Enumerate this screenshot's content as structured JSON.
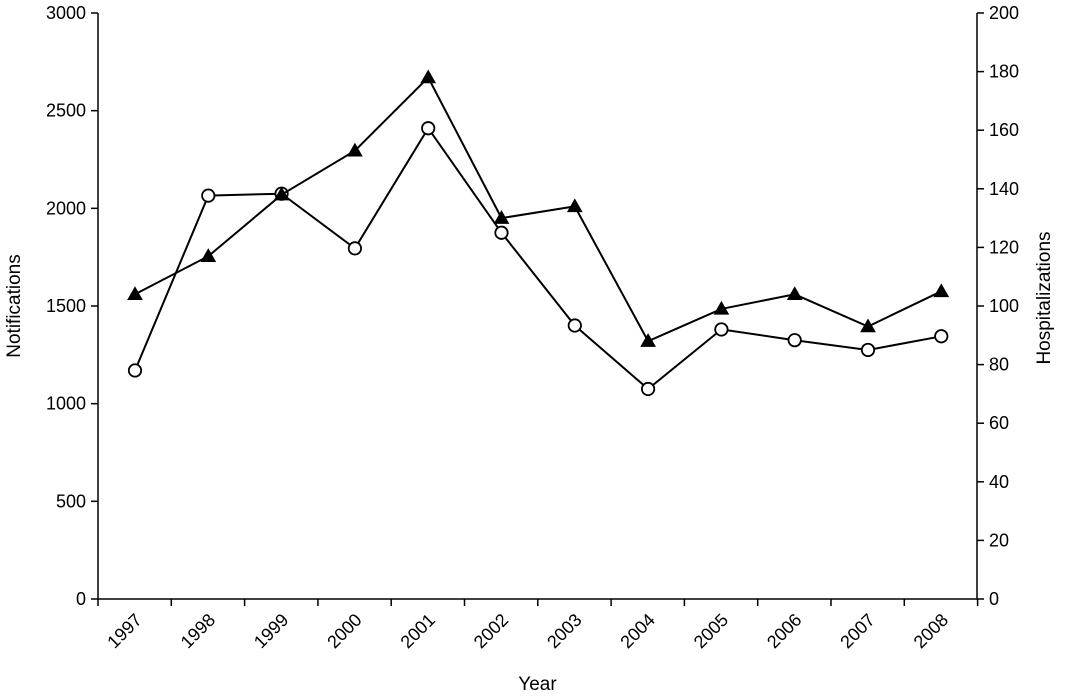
{
  "chart_data": {
    "type": "line",
    "x_axis": {
      "label": "Year",
      "categories": [
        "1997",
        "1998",
        "1999",
        "2000",
        "2001",
        "2002",
        "2003",
        "2004",
        "2005",
        "2006",
        "2007",
        "2008"
      ]
    },
    "y_axis_left": {
      "label": "Notifications",
      "range": [
        0,
        3000
      ],
      "ticks": [
        0,
        500,
        1000,
        1500,
        2000,
        2500,
        3000
      ]
    },
    "y_axis_right": {
      "label": "Hospitalizations",
      "range": [
        0,
        200
      ],
      "ticks": [
        0,
        20,
        40,
        60,
        80,
        100,
        120,
        140,
        160,
        180,
        200
      ]
    },
    "series": [
      {
        "marker": "open-circle",
        "axis": "left",
        "values": [
          1170,
          2065,
          2075,
          1795,
          2410,
          1875,
          1400,
          1075,
          1380,
          1325,
          1275,
          1345
        ]
      },
      {
        "marker": "filled-triangle",
        "axis": "right",
        "values": [
          104,
          117,
          138,
          153,
          178,
          130,
          134,
          88,
          99,
          104,
          93,
          105
        ]
      }
    ],
    "grid": false,
    "legend": "none",
    "colors": {
      "line": "#000000",
      "background": "#ffffff"
    }
  }
}
